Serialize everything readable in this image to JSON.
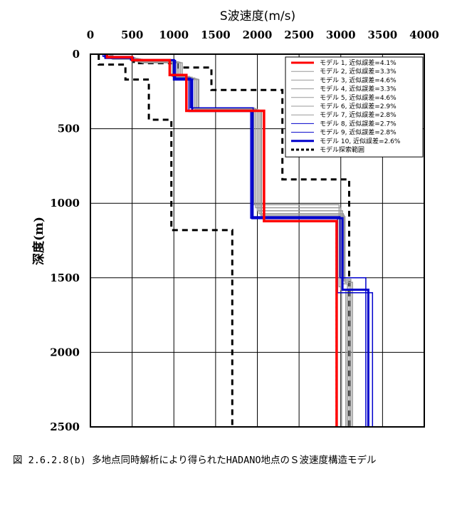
{
  "caption": "図 2.6.2.8(b)  多地点同時解析により得られたHADANO地点のＳ波速度構造モデル",
  "chart_data": {
    "type": "line",
    "xlabel": "S波速度(m/s)",
    "ylabel": "深度(m)",
    "xlim": [
      0,
      4000
    ],
    "ylim": [
      2500,
      0
    ],
    "x_ticks": [
      "0",
      "500",
      "1000",
      "1500",
      "2000",
      "2500",
      "3000",
      "3500",
      "4000"
    ],
    "y_ticks": [
      "0",
      "500",
      "1000",
      "1500",
      "2000",
      "2500"
    ],
    "grid": true,
    "legend_position": "top-right",
    "series": [
      {
        "name": "モデル 1, 近似誤差=4.1%",
        "color": "#ff0000",
        "style": "thick",
        "points": [
          [
            200,
            0
          ],
          [
            200,
            20
          ],
          [
            500,
            20
          ],
          [
            500,
            40
          ],
          [
            950,
            40
          ],
          [
            950,
            140
          ],
          [
            1150,
            140
          ],
          [
            1150,
            380
          ],
          [
            2080,
            380
          ],
          [
            2080,
            1120
          ],
          [
            2950,
            1120
          ],
          [
            2950,
            2500
          ]
        ]
      },
      {
        "name": "モデル 2, 近似誤差=3.3%",
        "color": "#999999",
        "style": "thin",
        "points": [
          [
            210,
            0
          ],
          [
            210,
            22
          ],
          [
            520,
            22
          ],
          [
            520,
            45
          ],
          [
            980,
            45
          ],
          [
            980,
            150
          ],
          [
            1190,
            150
          ],
          [
            1190,
            360
          ],
          [
            1960,
            360
          ],
          [
            1960,
            1010
          ],
          [
            2980,
            1010
          ],
          [
            2980,
            1560
          ],
          [
            3010,
            1560
          ],
          [
            3010,
            2500
          ]
        ]
      },
      {
        "name": "モデル 3, 近似誤差=4.6%",
        "color": "#999999",
        "style": "thin",
        "points": [
          [
            230,
            0
          ],
          [
            230,
            25
          ],
          [
            540,
            25
          ],
          [
            540,
            48
          ],
          [
            1010,
            48
          ],
          [
            1010,
            155
          ],
          [
            1220,
            155
          ],
          [
            1220,
            365
          ],
          [
            1980,
            365
          ],
          [
            1980,
            1030
          ],
          [
            3000,
            1030
          ],
          [
            3000,
            1580
          ],
          [
            3060,
            1580
          ],
          [
            3060,
            2500
          ]
        ]
      },
      {
        "name": "モデル 4, 近似誤差=3.3%",
        "color": "#999999",
        "style": "thin",
        "points": [
          [
            240,
            0
          ],
          [
            240,
            28
          ],
          [
            560,
            28
          ],
          [
            560,
            50
          ],
          [
            1040,
            50
          ],
          [
            1040,
            160
          ],
          [
            1250,
            160
          ],
          [
            1250,
            370
          ],
          [
            2000,
            370
          ],
          [
            2000,
            1050
          ],
          [
            3020,
            1050
          ],
          [
            3020,
            1540
          ],
          [
            3080,
            1540
          ],
          [
            3080,
            2500
          ]
        ]
      },
      {
        "name": "モデル 5, 近似誤差=4.6%",
        "color": "#999999",
        "style": "thin",
        "points": [
          [
            250,
            0
          ],
          [
            250,
            30
          ],
          [
            580,
            30
          ],
          [
            580,
            52
          ],
          [
            1060,
            52
          ],
          [
            1060,
            165
          ],
          [
            1270,
            165
          ],
          [
            1270,
            375
          ],
          [
            2020,
            375
          ],
          [
            2020,
            1070
          ],
          [
            3030,
            1070
          ],
          [
            3030,
            1520
          ],
          [
            3100,
            1520
          ],
          [
            3100,
            2500
          ]
        ]
      },
      {
        "name": "モデル 6, 近似誤差=2.9%",
        "color": "#999999",
        "style": "thin",
        "points": [
          [
            260,
            0
          ],
          [
            260,
            32
          ],
          [
            600,
            32
          ],
          [
            600,
            55
          ],
          [
            1080,
            55
          ],
          [
            1080,
            168
          ],
          [
            1290,
            168
          ],
          [
            1290,
            378
          ],
          [
            2040,
            378
          ],
          [
            2040,
            1080
          ],
          [
            3040,
            1080
          ],
          [
            3040,
            1510
          ],
          [
            3120,
            1510
          ],
          [
            3120,
            2500
          ]
        ]
      },
      {
        "name": "モデル 7, 近似誤差=2.8%",
        "color": "#999999",
        "style": "thin",
        "points": [
          [
            270,
            0
          ],
          [
            270,
            34
          ],
          [
            620,
            34
          ],
          [
            620,
            58
          ],
          [
            1100,
            58
          ],
          [
            1100,
            170
          ],
          [
            1300,
            170
          ],
          [
            1300,
            380
          ],
          [
            2050,
            380
          ],
          [
            2050,
            1090
          ],
          [
            3050,
            1090
          ],
          [
            3050,
            1530
          ],
          [
            3140,
            1530
          ],
          [
            3140,
            2500
          ]
        ]
      },
      {
        "name": "モデル 8, 近似誤差=2.7%",
        "color": "#0000cc",
        "style": "thin",
        "points": [
          [
            150,
            0
          ],
          [
            150,
            15
          ],
          [
            480,
            15
          ],
          [
            480,
            40
          ],
          [
            1000,
            40
          ],
          [
            1000,
            160
          ],
          [
            1200,
            160
          ],
          [
            1200,
            360
          ],
          [
            1950,
            360
          ],
          [
            1950,
            1090
          ],
          [
            2990,
            1090
          ],
          [
            2990,
            1500
          ],
          [
            3300,
            1500
          ],
          [
            3300,
            2500
          ]
        ]
      },
      {
        "name": "モデル 9, 近似誤差=2.8%",
        "color": "#0000cc",
        "style": "thin",
        "points": [
          [
            170,
            0
          ],
          [
            170,
            18
          ],
          [
            500,
            18
          ],
          [
            500,
            42
          ],
          [
            1020,
            42
          ],
          [
            1020,
            165
          ],
          [
            1180,
            165
          ],
          [
            1180,
            385
          ],
          [
            1920,
            385
          ],
          [
            1920,
            1100
          ],
          [
            2960,
            1100
          ],
          [
            2960,
            1600
          ],
          [
            3380,
            1600
          ],
          [
            3380,
            2500
          ]
        ]
      },
      {
        "name": "モデル 10, 近似誤差=2.6%",
        "color": "#0000cc",
        "style": "thick",
        "points": [
          [
            180,
            0
          ],
          [
            180,
            25
          ],
          [
            510,
            25
          ],
          [
            510,
            40
          ],
          [
            1000,
            40
          ],
          [
            1000,
            170
          ],
          [
            1220,
            170
          ],
          [
            1220,
            380
          ],
          [
            1940,
            380
          ],
          [
            1940,
            1100
          ],
          [
            3020,
            1100
          ],
          [
            3020,
            1580
          ],
          [
            3330,
            1580
          ],
          [
            3330,
            2500
          ]
        ]
      }
    ],
    "search_range": {
      "name": "モデル探索範囲",
      "color": "#000000",
      "lower": [
        [
          100,
          0
        ],
        [
          100,
          70
        ],
        [
          420,
          70
        ],
        [
          420,
          170
        ],
        [
          700,
          170
        ],
        [
          700,
          440
        ],
        [
          970,
          440
        ],
        [
          970,
          1180
        ],
        [
          1700,
          1180
        ],
        [
          1700,
          2500
        ]
      ],
      "upper": [
        [
          200,
          0
        ],
        [
          200,
          20
        ],
        [
          520,
          20
        ],
        [
          520,
          60
        ],
        [
          1050,
          60
        ],
        [
          1050,
          90
        ],
        [
          1450,
          90
        ],
        [
          1450,
          240
        ],
        [
          2300,
          240
        ],
        [
          2300,
          840
        ],
        [
          3100,
          840
        ],
        [
          3100,
          2500
        ]
      ]
    }
  }
}
